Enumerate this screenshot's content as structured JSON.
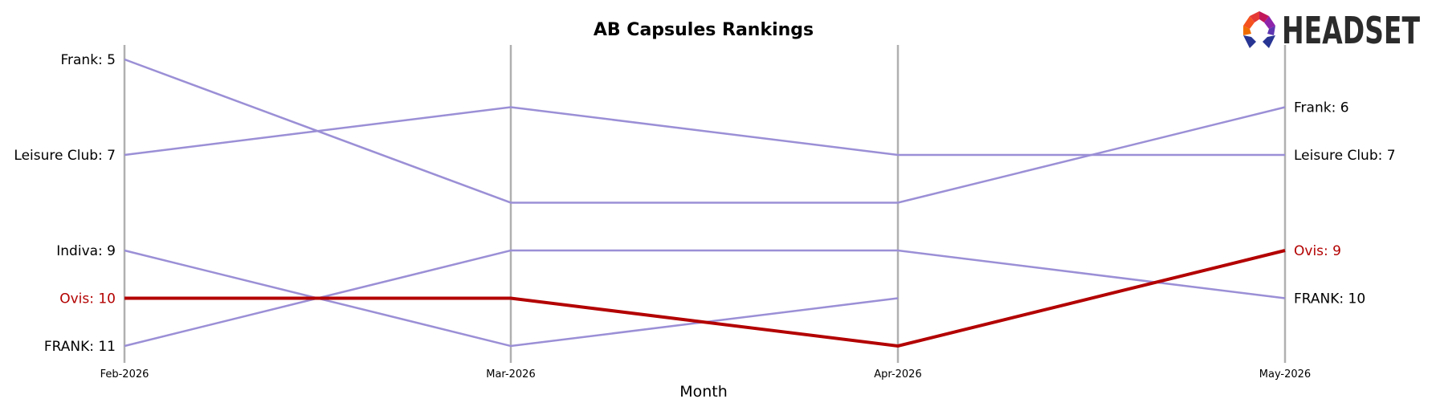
{
  "chart_data": {
    "type": "line",
    "title": "AB Capsules Rankings",
    "xlabel": "Month",
    "ylabel": "",
    "categories": [
      "Feb-2026",
      "Mar-2026",
      "Apr-2026",
      "May-2026"
    ],
    "ylim": [
      11,
      5
    ],
    "y_inverted": true,
    "grid": "vertical",
    "series": [
      {
        "name": "Frank",
        "values": [
          5,
          8,
          8,
          6
        ],
        "color": "#9b8fd6",
        "highlight": false
      },
      {
        "name": "Leisure Club",
        "values": [
          7,
          6,
          7,
          7
        ],
        "color": "#9b8fd6",
        "highlight": false
      },
      {
        "name": "Indiva",
        "values": [
          9,
          11,
          10,
          null
        ],
        "color": "#9b8fd6",
        "highlight": false
      },
      {
        "name": "FRANK",
        "values": [
          11,
          9,
          9,
          10
        ],
        "color": "#9b8fd6",
        "highlight": false
      },
      {
        "name": "Ovis",
        "values": [
          10,
          10,
          11,
          9
        ],
        "color": "#b30000",
        "highlight": true
      }
    ],
    "left_labels": [
      {
        "text": "Frank: 5",
        "value": 5,
        "color": "#000000"
      },
      {
        "text": "Leisure Club: 7",
        "value": 7,
        "color": "#000000"
      },
      {
        "text": "Indiva: 9",
        "value": 9,
        "color": "#000000"
      },
      {
        "text": "Ovis: 10",
        "value": 10,
        "color": "#b30000"
      },
      {
        "text": "FRANK: 11",
        "value": 11,
        "color": "#000000"
      }
    ],
    "right_labels": [
      {
        "text": "Frank: 6",
        "value": 6,
        "color": "#000000"
      },
      {
        "text": "Leisure Club: 7",
        "value": 7,
        "color": "#000000"
      },
      {
        "text": "Ovis: 9",
        "value": 9,
        "color": "#b30000"
      },
      {
        "text": "FRANK: 10",
        "value": 10,
        "color": "#000000"
      }
    ]
  },
  "logo": {
    "text": "HEADSET",
    "icon": "headset-logo-icon"
  }
}
